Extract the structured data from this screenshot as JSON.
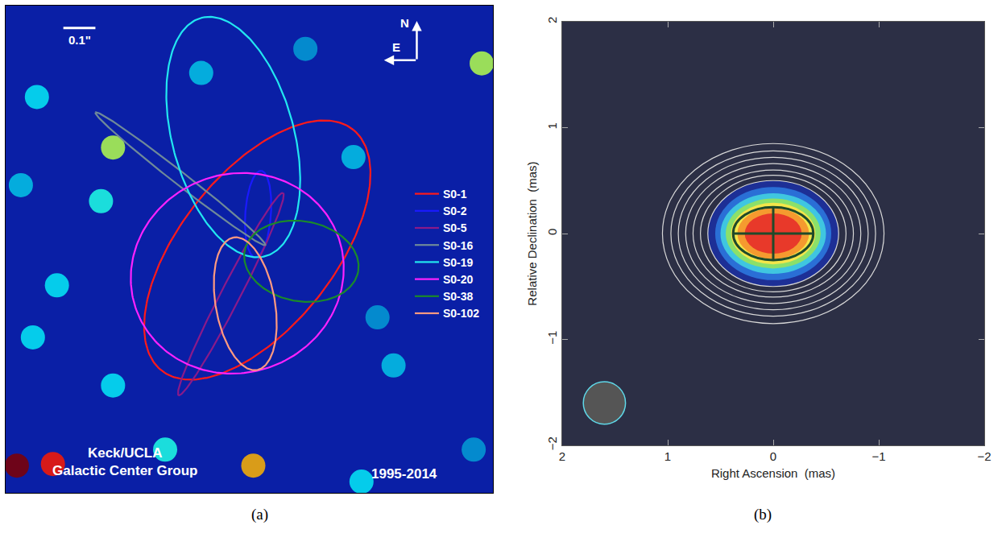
{
  "chart_data": [
    {
      "type": "orbits",
      "caption": "(a)",
      "xlim": [
        -0.76,
        0.76
      ],
      "ylim": [
        -0.76,
        0.76
      ],
      "tick_labels": false,
      "legend": "right",
      "clim": [
        0,
        1
      ],
      "scale_bar": {
        "length": 0.1,
        "label": "0.1\""
      },
      "compass": {
        "north": "N",
        "east": "E"
      },
      "credit": [
        "Keck/UCLA",
        "Galactic Center Group"
      ],
      "epoch": "1995-2014",
      "series": [
        {
          "name": "S0-1",
          "color": "#ff1a1a",
          "orbit": {
            "x": 0.025,
            "y": -0.0025,
            "a": 0.48,
            "b": 0.24,
            "angle": 51.5
          }
        },
        {
          "name": "S0-2",
          "color": "#1a1aff",
          "orbit": {
            "x": 0.0275,
            "y": 0.11,
            "a": 0.135,
            "b": 0.04,
            "angle": 86
          }
        },
        {
          "name": "S0-5",
          "color": "#8a1a8a",
          "orbit": {
            "x": -0.0575,
            "y": -0.14,
            "a": 0.355,
            "b": 0.03,
            "angle": 62.7
          }
        },
        {
          "name": "S0-16",
          "color": "#6f8a99",
          "orbit": {
            "x": -0.215,
            "y": 0.22,
            "a": 0.336,
            "b": 0.02,
            "angle": 142
          }
        },
        {
          "name": "S0-19",
          "color": "#22e6f0",
          "orbit": {
            "x": -0.05,
            "y": 0.35,
            "a": 0.385,
            "b": 0.19,
            "angle": 105
          }
        },
        {
          "name": "S0-20",
          "color": "#ff22ff",
          "orbit": {
            "x": -0.0375,
            "y": -0.075,
            "a": 0.335,
            "b": 0.31,
            "angle": 20
          }
        },
        {
          "name": "S0-38",
          "color": "#1a8a2a",
          "orbit": {
            "x": 0.1625,
            "y": -0.0375,
            "a": 0.18,
            "b": 0.125,
            "angle": -10
          }
        },
        {
          "name": "S0-102",
          "color": "#ff9a80",
          "orbit": {
            "x": -0.0125,
            "y": -0.17,
            "a": 0.21,
            "b": 0.0925,
            "angle": 100
          }
        }
      ],
      "sources": {
        "x": [
          0.725,
          -0.425,
          -0.4625,
          -0.6625,
          -0.6,
          -0.675,
          -0.725,
          -0.6125,
          0.0125,
          -0.425,
          -0.2625,
          0.45,
          0.35,
          -0.15,
          -0.7125,
          0.7,
          0.325,
          0.175,
          0.4
        ],
        "y": [
          0.58,
          0.3175,
          0.15,
          0.475,
          -0.1125,
          -0.275,
          -0.675,
          -0.67,
          -0.675,
          -0.425,
          -0.625,
          -0.3625,
          -0.725,
          0.55,
          0.2,
          -0.625,
          0.2875,
          0.625,
          -0.2125
        ],
        "intensity": [
          0.55,
          0.55,
          0.4,
          0.35,
          0.35,
          0.35,
          1.0,
          0.85,
          0.7,
          0.35,
          0.4,
          0.3,
          0.35,
          0.3,
          0.3,
          0.25,
          0.3,
          0.25,
          0.25
        ]
      }
    },
    {
      "type": "contour",
      "caption": "(b)",
      "xlim": [
        2,
        -2
      ],
      "ylim": [
        -2,
        2
      ],
      "xticks": [
        {
          "value": -2,
          "label": "−2"
        },
        {
          "value": -1,
          "label": "−1"
        },
        0,
        1,
        2
      ],
      "yticks": [
        {
          "value": -2,
          "label": "−2"
        },
        {
          "value": -1,
          "label": "−1"
        },
        0,
        1,
        2
      ],
      "x_label": "Right Ascension  (mas)",
      "y_label": "Relative Declination  (mas)",
      "emission_levels": {
        "rx": [
          0.62,
          0.55,
          0.5,
          0.45,
          0.4,
          0.34,
          0.27
        ],
        "ry": [
          0.5,
          0.44,
          0.38,
          0.33,
          0.29,
          0.24,
          0.19
        ]
      },
      "contours": {
        "rx": [
          1.05,
          0.97,
          0.9,
          0.83,
          0.76,
          0.69,
          0.62
        ],
        "ry": [
          0.85,
          0.78,
          0.72,
          0.66,
          0.6,
          0.55,
          0.5
        ]
      },
      "fit_ellipse": {
        "x": 0,
        "y": 0,
        "rx": 0.38,
        "ry": 0.25
      },
      "beam": {
        "x": 1.6,
        "y": -1.6,
        "r": 0.2
      }
    }
  ]
}
